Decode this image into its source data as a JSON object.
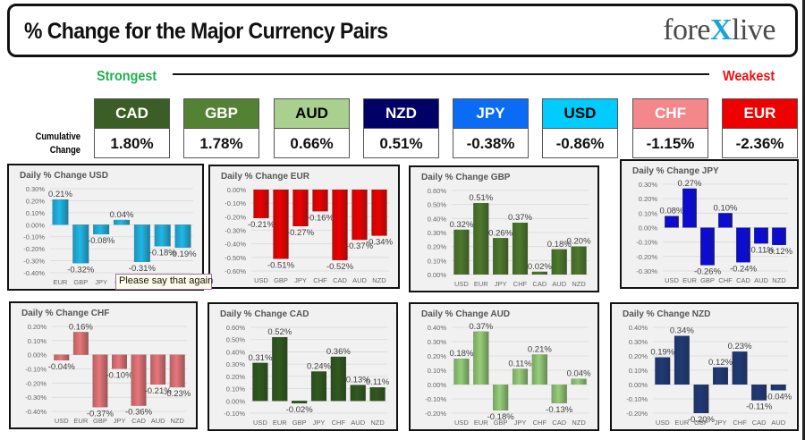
{
  "header": {
    "title": "% Change for the Major Currency Pairs",
    "logo_left": "fore",
    "logo_x": "X",
    "logo_right": "live"
  },
  "strength": {
    "strongest_label": "Strongest",
    "weakest_label": "Weakest",
    "strongest_color": "#1fb04f",
    "weakest_color": "#ee1111"
  },
  "cumulative": {
    "label_line1": "Cumulative",
    "label_line2": "Change",
    "currencies": [
      {
        "code": "CAD",
        "value": "1.80%",
        "bg": "#3a5e25",
        "fg": "#ffffff"
      },
      {
        "code": "GBP",
        "value": "1.78%",
        "bg": "#548235",
        "fg": "#ffffff"
      },
      {
        "code": "AUD",
        "value": "0.66%",
        "bg": "#a9d08e",
        "fg": "#000000"
      },
      {
        "code": "NZD",
        "value": "0.51%",
        "bg": "#000066",
        "fg": "#ffffff"
      },
      {
        "code": "JPY",
        "value": "-0.38%",
        "bg": "#0a6cf5",
        "fg": "#ffffff"
      },
      {
        "code": "USD",
        "value": "-0.86%",
        "bg": "#00ccff",
        "fg": "#000000"
      },
      {
        "code": "CHF",
        "value": "-1.15%",
        "bg": "#f4878a",
        "fg": "#ffffff"
      },
      {
        "code": "EUR",
        "value": "-2.36%",
        "bg": "#ee0000",
        "fg": "#ffffff"
      }
    ]
  },
  "tooltip": {
    "text": "Please say that again"
  },
  "chart_data": [
    {
      "type": "bar",
      "title": "Daily % Change USD",
      "categories": [
        "EUR",
        "GBP",
        "JPY",
        "CHF",
        "CAD",
        "AUD",
        "NZD"
      ],
      "values": [
        0.21,
        -0.32,
        -0.08,
        0.04,
        -0.31,
        -0.18,
        -0.19
      ],
      "labels": [
        "0.21%",
        "-0.32%",
        "-0.08%",
        "0.04%",
        "-0.31%",
        "-0.18%",
        "-0.19%"
      ],
      "yticks": [
        "0.30%",
        "0.20%",
        "0.10%",
        "0.00%",
        "-0.10%",
        "-0.20%",
        "-0.30%",
        "-0.40%"
      ],
      "ylim": [
        -0.4,
        0.3
      ],
      "color": "#1fb8e8",
      "grid": true
    },
    {
      "type": "bar",
      "title": "Daily % Change EUR",
      "categories": [
        "USD",
        "GBP",
        "JPY",
        "CHF",
        "CAD",
        "AUD",
        "NZD"
      ],
      "values": [
        -0.21,
        -0.51,
        -0.27,
        -0.16,
        -0.52,
        -0.37,
        -0.34
      ],
      "labels": [
        "-0.21%",
        "-0.51%",
        "-0.27%",
        "-0.16%",
        "-0.52%",
        "-0.37%",
        "-0.34%"
      ],
      "yticks": [
        "0.00%",
        "-0.10%",
        "-0.20%",
        "-0.30%",
        "-0.40%",
        "-0.50%",
        "-0.60%"
      ],
      "ylim": [
        -0.6,
        0.0
      ],
      "color": "#ee0000",
      "grid": true
    },
    {
      "type": "bar",
      "title": "Daily % Change GBP",
      "categories": [
        "USD",
        "EUR",
        "JPY",
        "CHF",
        "CAD",
        "AUD",
        "NZD"
      ],
      "values": [
        0.32,
        0.51,
        0.26,
        0.37,
        0.02,
        0.18,
        0.2
      ],
      "labels": [
        "0.32%",
        "0.51%",
        "0.26%",
        "0.37%",
        "0.02%",
        "0.18%",
        "0.20%"
      ],
      "yticks": [
        "0.60%",
        "0.50%",
        "0.40%",
        "0.30%",
        "0.20%",
        "0.10%",
        "0.00%"
      ],
      "ylim": [
        0.0,
        0.6
      ],
      "color": "#4e7a2c",
      "grid": true
    },
    {
      "type": "bar",
      "title": "Daily % Change JPY",
      "categories": [
        "USD",
        "EUR",
        "GBP",
        "CHF",
        "CAD",
        "AUD",
        "NZD"
      ],
      "values": [
        0.08,
        0.27,
        -0.26,
        0.1,
        -0.24,
        -0.11,
        -0.12
      ],
      "labels": [
        "0.08%",
        "0.27%",
        "-0.26%",
        "0.10%",
        "-0.24%",
        "-0.11%",
        "-0.12%"
      ],
      "yticks": [
        "0.30%",
        "0.20%",
        "0.10%",
        "0.00%",
        "-0.10%",
        "-0.20%",
        "-0.30%"
      ],
      "ylim": [
        -0.3,
        0.3
      ],
      "color": "#0a0ae0",
      "grid": true
    },
    {
      "type": "bar",
      "title": "Daily % Change CHF",
      "categories": [
        "USD",
        "EUR",
        "GBP",
        "JPY",
        "CAD",
        "AUD",
        "NZD"
      ],
      "values": [
        -0.04,
        0.16,
        -0.37,
        -0.1,
        -0.36,
        -0.21,
        -0.23
      ],
      "labels": [
        "-0.04%",
        "0.16%",
        "-0.37%",
        "-0.10%",
        "-0.36%",
        "-0.21%",
        "-0.23%"
      ],
      "yticks": [
        "0.20%",
        "0.10%",
        "0.00%",
        "-0.10%",
        "-0.20%",
        "-0.30%",
        "-0.40%"
      ],
      "ylim": [
        -0.4,
        0.2
      ],
      "color": "#e8767a",
      "grid": true
    },
    {
      "type": "bar",
      "title": "Daily % Change CAD",
      "categories": [
        "USD",
        "EUR",
        "GBP",
        "JPY",
        "CHF",
        "AUD",
        "NZD"
      ],
      "values": [
        0.31,
        0.52,
        -0.02,
        0.24,
        0.36,
        0.13,
        0.11
      ],
      "labels": [
        "0.31%",
        "0.52%",
        "-0.02%",
        "0.24%",
        "0.36%",
        "0.13%",
        "0.11%"
      ],
      "yticks": [
        "0.60%",
        "0.50%",
        "0.40%",
        "0.30%",
        "0.20%",
        "0.10%",
        "0.00%",
        "-0.10%"
      ],
      "ylim": [
        -0.1,
        0.6
      ],
      "color": "#2f5a1e",
      "grid": true
    },
    {
      "type": "bar",
      "title": "Daily % Change AUD",
      "categories": [
        "USD",
        "EUR",
        "GBP",
        "JPY",
        "CHF",
        "CAD",
        "NZD"
      ],
      "values": [
        0.18,
        0.37,
        -0.18,
        0.11,
        0.21,
        -0.13,
        0.04
      ],
      "labels": [
        "0.18%",
        "0.37%",
        "-0.18%",
        "0.11%",
        "0.21%",
        "-0.13%",
        "0.04%"
      ],
      "yticks": [
        "0.40%",
        "0.30%",
        "0.20%",
        "0.10%",
        "0.00%",
        "-0.10%",
        "-0.20%"
      ],
      "ylim": [
        -0.2,
        0.4
      ],
      "color": "#96cf78",
      "grid": true
    },
    {
      "type": "bar",
      "title": "Daily % Change NZD",
      "categories": [
        "USD",
        "EUR",
        "GBP",
        "JPY",
        "CHF",
        "CAD",
        "AUD"
      ],
      "values": [
        0.19,
        0.34,
        -0.2,
        0.12,
        0.23,
        -0.11,
        -0.04
      ],
      "labels": [
        "0.19%",
        "0.34%",
        "-0.20%",
        "0.12%",
        "0.23%",
        "-0.11%",
        "-0.04%"
      ],
      "yticks": [
        "0.40%",
        "0.30%",
        "0.20%",
        "0.10%",
        "0.00%",
        "-0.10%",
        "-0.20%"
      ],
      "ylim": [
        -0.2,
        0.4
      ],
      "color": "#1f3a78",
      "grid": true
    }
  ]
}
